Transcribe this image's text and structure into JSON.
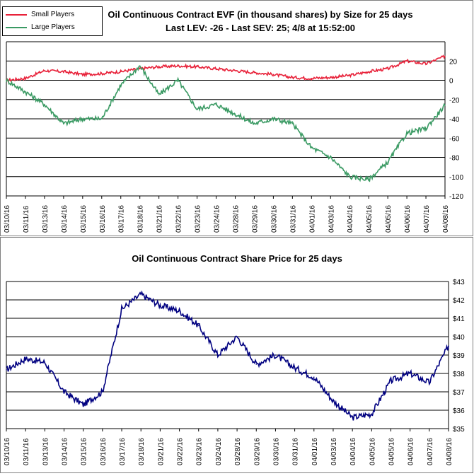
{
  "charts": [
    {
      "id": "evf",
      "title_line1": "Oil Continuous Contract EVF (in thousand shares) by Size for 25 days",
      "title_line2": "Last LEV: -26 - Last SEV: 25; 4/8 at 15:52:00",
      "legend": [
        {
          "name": "Small Players",
          "color": "#e8223a"
        },
        {
          "name": "Large Players",
          "color": "#3a9a63"
        }
      ]
    },
    {
      "id": "price",
      "title": "Oil Continuous Contract Share Price for 25 days"
    }
  ],
  "x_dates": [
    "03/10/16",
    "03/11/16",
    "03/13/16",
    "03/14/16",
    "03/15/16",
    "03/16/16",
    "03/17/16",
    "03/18/16",
    "03/21/16",
    "03/22/16",
    "03/23/16",
    "03/24/16",
    "03/28/16",
    "03/29/16",
    "03/30/16",
    "03/31/16",
    "04/01/16",
    "04/03/16",
    "04/04/16",
    "04/05/16",
    "04/05/16",
    "04/06/16",
    "04/07/16",
    "04/08/16"
  ],
  "chart_data": [
    {
      "type": "line",
      "title": "Oil Continuous Contract EVF (in thousand shares) by Size for 25 days",
      "subtitle": "Last LEV: -26 - Last SEV: 25; 4/8 at 15:52:00",
      "x": [
        "03/10/16",
        "03/11/16",
        "03/13/16",
        "03/14/16",
        "03/15/16",
        "03/16/16",
        "03/17/16",
        "03/18/16",
        "03/21/16",
        "03/22/16",
        "03/23/16",
        "03/24/16",
        "03/28/16",
        "03/29/16",
        "03/30/16",
        "03/31/16",
        "04/01/16",
        "04/03/16",
        "04/04/16",
        "04/05/16",
        "04/05/16",
        "04/06/16",
        "04/07/16",
        "04/08/16"
      ],
      "ylim": [
        -120,
        40
      ],
      "yticks": [
        -120,
        -100,
        -80,
        -60,
        -40,
        -20,
        0,
        20
      ],
      "grid": true,
      "legend_position": "top-left",
      "series": [
        {
          "name": "Small Players",
          "color": "#e8223a",
          "values": [
            0,
            2,
            10,
            9,
            6,
            7,
            9,
            12,
            14,
            15,
            14,
            12,
            10,
            8,
            6,
            3,
            2,
            3,
            5,
            9,
            12,
            20,
            17,
            25
          ]
        },
        {
          "name": "Large Players",
          "color": "#3a9a63",
          "values": [
            0,
            -12,
            -25,
            -45,
            -40,
            -40,
            -5,
            15,
            -15,
            0,
            -30,
            -25,
            -35,
            -45,
            -40,
            -45,
            -70,
            -80,
            -100,
            -103,
            -85,
            -55,
            -50,
            -26
          ]
        }
      ]
    },
    {
      "type": "line",
      "title": "Oil Continuous Contract Share Price for 25 days",
      "x": [
        "03/10/16",
        "03/11/16",
        "03/13/16",
        "03/14/16",
        "03/15/16",
        "03/16/16",
        "03/17/16",
        "03/18/16",
        "03/21/16",
        "03/22/16",
        "03/23/16",
        "03/24/16",
        "03/28/16",
        "03/29/16",
        "03/30/16",
        "03/31/16",
        "04/01/16",
        "04/03/16",
        "04/04/16",
        "04/05/16",
        "04/05/16",
        "04/06/16",
        "04/07/16",
        "04/08/16"
      ],
      "ylim": [
        35,
        43
      ],
      "yticks": [
        "$35",
        "$36",
        "$37",
        "$38",
        "$39",
        "$40",
        "$41",
        "$42",
        "$43"
      ],
      "grid": true,
      "series": [
        {
          "name": "",
          "color": "#000080",
          "values": [
            38.2,
            38.8,
            38.6,
            37.0,
            36.3,
            37.0,
            41.5,
            42.3,
            41.7,
            41.4,
            40.6,
            39.0,
            40.0,
            38.5,
            39.0,
            38.3,
            37.8,
            36.5,
            35.6,
            35.8,
            37.6,
            38.0,
            37.5,
            39.5
          ]
        }
      ]
    }
  ]
}
